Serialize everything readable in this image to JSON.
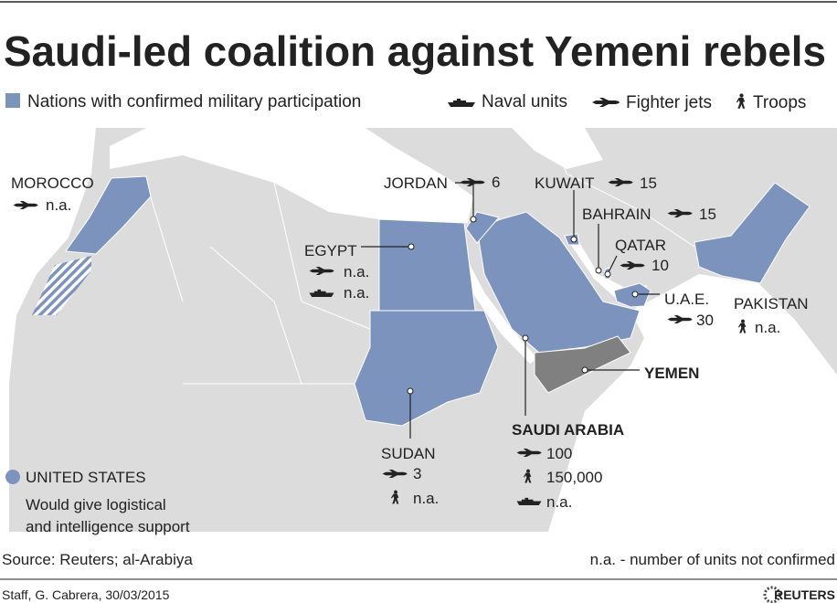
{
  "header": {
    "title": "Saudi-led coalition against Yemeni rebels"
  },
  "legend": {
    "participation": "Nations with confirmed military participation",
    "naval": "Naval units",
    "jets": "Fighter jets",
    "troops": "Troops"
  },
  "countries": [
    {
      "name": "MOROCCO",
      "jets": "n.a."
    },
    {
      "name": "JORDAN",
      "jets": 6
    },
    {
      "name": "KUWAIT",
      "jets": 15
    },
    {
      "name": "BAHRAIN",
      "jets": 15
    },
    {
      "name": "QATAR",
      "jets": 10
    },
    {
      "name": "U.A.E.",
      "jets": 30
    },
    {
      "name": "PAKISTAN",
      "troops": "n.a."
    },
    {
      "name": "EGYPT",
      "jets": "n.a.",
      "naval": "n.a."
    },
    {
      "name": "YEMEN"
    },
    {
      "name": "SAUDI ARABIA",
      "jets": 100,
      "troops": {
        "value": 150000,
        "label": "150,000"
      },
      "naval": "n.a."
    },
    {
      "name": "SUDAN",
      "jets": 3,
      "troops": "n.a."
    }
  ],
  "united_states": {
    "name": "UNITED STATES",
    "note_line1": "Would give logistical",
    "note_line2": "and intelligence support"
  },
  "footer": {
    "source": "Source: Reuters; al-Arabiya",
    "note": "n.a. - number of units not confirmed",
    "credit": "Staff, G. Cabrera, 30/03/2015",
    "brand": "REUTERS"
  }
}
